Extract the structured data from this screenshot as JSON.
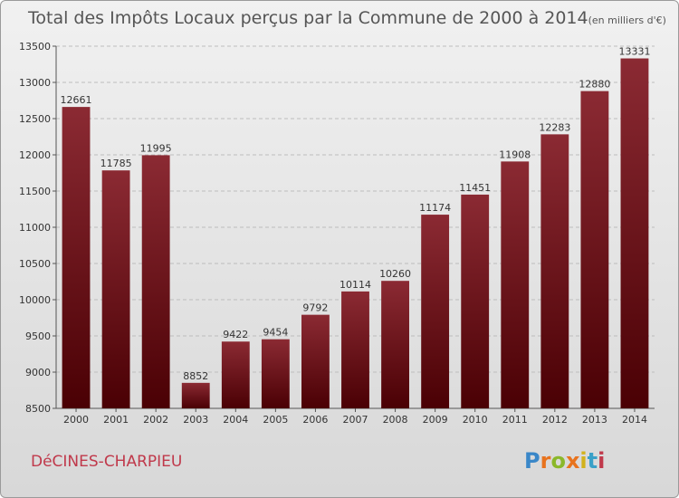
{
  "chart_data": {
    "type": "bar",
    "title": "Total des Impôts Locaux perçus par la Commune de 2000 à 2014",
    "unit_note": "(en milliers d'€)",
    "categories": [
      "2000",
      "2001",
      "2002",
      "2003",
      "2004",
      "2005",
      "2006",
      "2007",
      "2008",
      "2009",
      "2010",
      "2011",
      "2012",
      "2013",
      "2014"
    ],
    "values": [
      12661,
      11785,
      11995,
      8852,
      9422,
      9454,
      9792,
      10114,
      10260,
      11174,
      11451,
      11908,
      12283,
      12880,
      13331
    ],
    "ylim": [
      8500,
      13500
    ],
    "yticks": [
      8500,
      9000,
      9500,
      10000,
      10500,
      11000,
      11500,
      12000,
      12500,
      13000,
      13500
    ],
    "xlabel": "",
    "ylabel": "",
    "grid": true,
    "bar_color_top": "#8b2a33",
    "bar_color_bottom": "#4a0004"
  },
  "commune_name": "DéCINES-CHARPIEU",
  "logo": {
    "letters": [
      "P",
      "r",
      "o",
      "x",
      "i",
      "t",
      "i"
    ],
    "colors": [
      "#3a87c8",
      "#e8731e",
      "#8bb82a",
      "#e8731e",
      "#d2b21d",
      "#3aa0c8",
      "#c0394b"
    ]
  }
}
